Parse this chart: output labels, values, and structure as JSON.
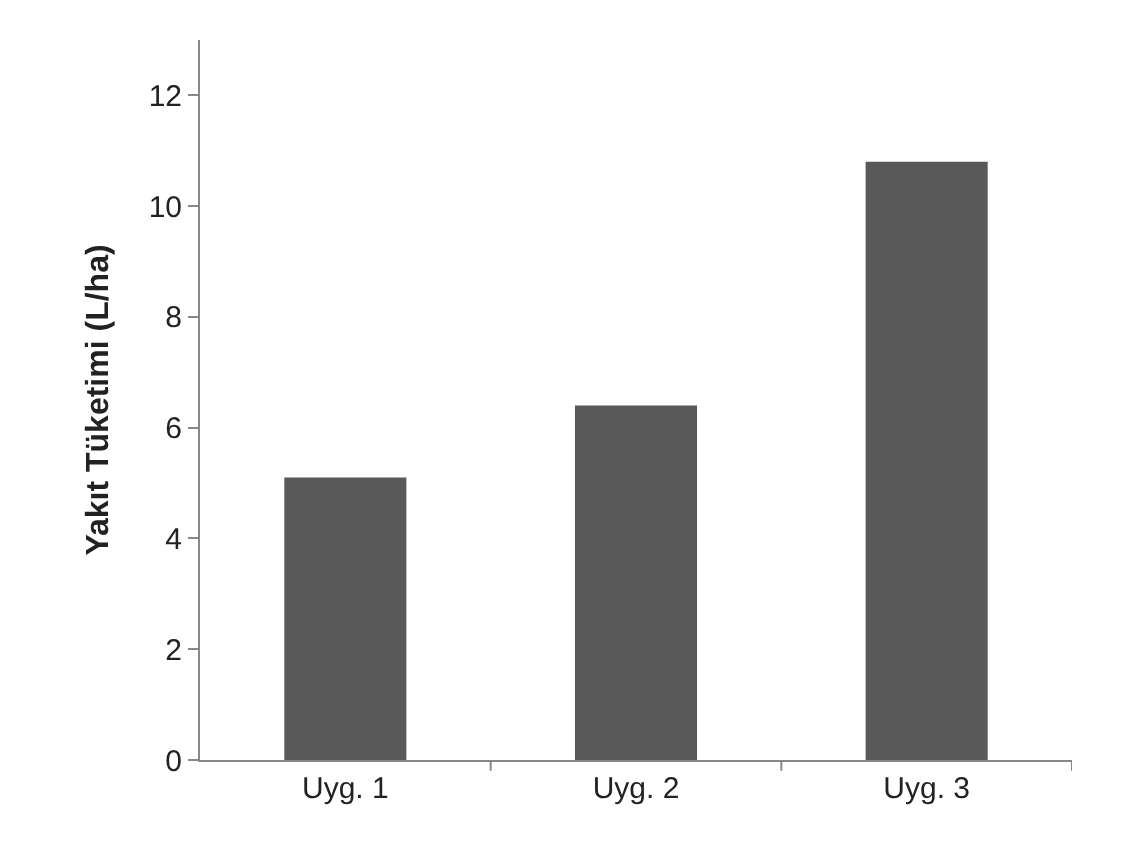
{
  "chart_data": {
    "type": "bar",
    "ylabel": "Yakıt Tüketimi (L/ha)",
    "categories": [
      "Uyg. 1",
      "Uyg. 2",
      "Uyg. 3"
    ],
    "values": [
      5.1,
      6.4,
      10.8
    ],
    "color": "#595959",
    "ylim": [
      0,
      13
    ],
    "yticks": [
      0,
      2,
      4,
      6,
      8,
      10,
      12
    ]
  }
}
